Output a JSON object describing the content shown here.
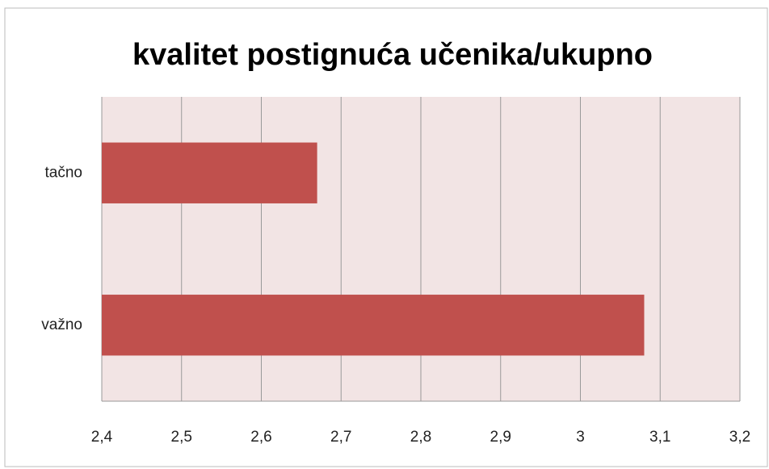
{
  "chart_data": {
    "type": "bar",
    "orientation": "horizontal",
    "title": "kvalitet postignuća učenika/ukupno",
    "categories": [
      "tačno",
      "važno"
    ],
    "values": [
      2.67,
      3.08
    ],
    "color": "#c0504d",
    "xlim": [
      2.4,
      3.2
    ],
    "xticks": [
      {
        "value": 2.4,
        "label": "2,4"
      },
      {
        "value": 2.5,
        "label": "2,5"
      },
      {
        "value": 2.6,
        "label": "2,6"
      },
      {
        "value": 2.7,
        "label": "2,7"
      },
      {
        "value": 2.8,
        "label": "2,8"
      },
      {
        "value": 2.9,
        "label": "2,9"
      },
      3,
      {
        "value": 3.1,
        "label": "3,1"
      },
      {
        "value": 3.2,
        "label": "3,2"
      }
    ],
    "grid": true
  }
}
